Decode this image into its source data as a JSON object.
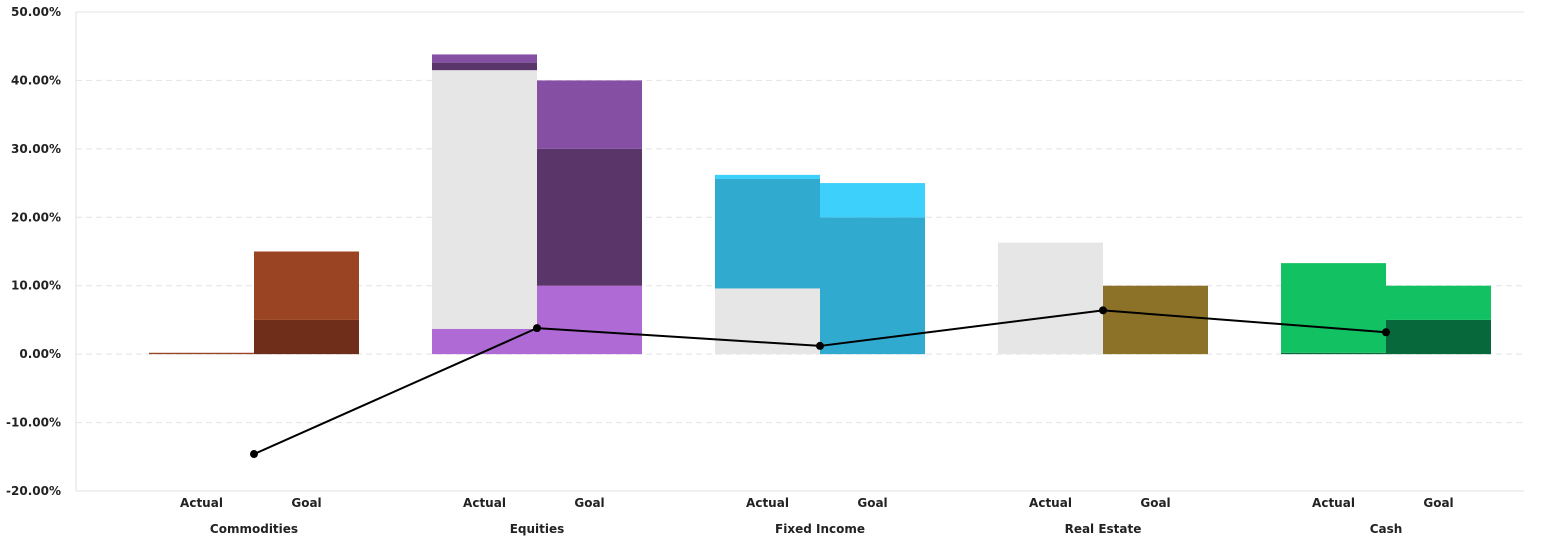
{
  "chart_data": {
    "type": "bar",
    "title": "",
    "xlabel": "",
    "ylabel": "",
    "ylim": [
      -20,
      50
    ],
    "y_ticks": [
      50,
      40,
      30,
      20,
      10,
      0,
      -10,
      -20
    ],
    "y_tick_format": "percent_2dp",
    "grid": true,
    "legend": "none",
    "categories": [
      "Commodities",
      "Equities",
      "Fixed Income",
      "Real Estate",
      "Cash"
    ],
    "sub_categories": [
      "Actual",
      "Goal"
    ],
    "stacked_bars": [
      {
        "category": "Commodities",
        "actual": [
          {
            "from": 0,
            "to": 0.2,
            "color": "#9b4424"
          }
        ],
        "goal": [
          {
            "from": 0,
            "to": 5,
            "color": "#6e2e1a"
          },
          {
            "from": 5,
            "to": 15,
            "color": "#9b4424"
          }
        ]
      },
      {
        "category": "Equities",
        "actual": [
          {
            "from": 0,
            "to": 3.7,
            "color": "#b06ad6"
          },
          {
            "from": 3.7,
            "to": 41.5,
            "color": "#e6e6e6"
          },
          {
            "from": 41.5,
            "to": 42.6,
            "color": "#5a3569"
          },
          {
            "from": 42.6,
            "to": 43.8,
            "color": "#8550a3"
          }
        ],
        "goal": [
          {
            "from": 0,
            "to": 10,
            "color": "#b06ad6"
          },
          {
            "from": 10,
            "to": 30,
            "color": "#5a3569"
          },
          {
            "from": 30,
            "to": 40,
            "color": "#8550a3"
          }
        ]
      },
      {
        "category": "Fixed Income",
        "actual": [
          {
            "from": 0,
            "to": 9.6,
            "color": "#e6e6e6"
          },
          {
            "from": 9.6,
            "to": 25.6,
            "color": "#30abcf"
          },
          {
            "from": 25.6,
            "to": 26.2,
            "color": "#3dd0fa"
          }
        ],
        "goal": [
          {
            "from": 0,
            "to": 20,
            "color": "#30abcf"
          },
          {
            "from": 20,
            "to": 25,
            "color": "#3dd0fa"
          }
        ]
      },
      {
        "category": "Real Estate",
        "actual": [
          {
            "from": 0,
            "to": 16.3,
            "color": "#e6e6e6"
          }
        ],
        "goal": [
          {
            "from": 0,
            "to": 10,
            "color": "#8c7229"
          }
        ]
      },
      {
        "category": "Cash",
        "actual": [
          {
            "from": 0,
            "to": 0.2,
            "color": "#07683b"
          },
          {
            "from": 0.2,
            "to": 13.3,
            "color": "#12c262"
          }
        ],
        "goal": [
          {
            "from": 0,
            "to": 5,
            "color": "#07683b"
          },
          {
            "from": 5,
            "to": 10,
            "color": "#12c262"
          }
        ]
      }
    ],
    "line_series": {
      "values": [
        -14.6,
        3.8,
        1.2,
        6.4,
        3.2
      ],
      "color": "#000000"
    }
  }
}
